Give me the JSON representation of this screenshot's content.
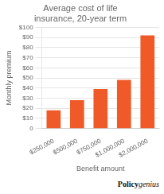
{
  "chart_data": {
    "type": "bar",
    "title": "Average cost of life\ninsurance, 20-year term",
    "categories": [
      "$250,000",
      "$500,000",
      "$750,000",
      "$1,000,000",
      "$2,000,000"
    ],
    "values": [
      18,
      28,
      39,
      48,
      92
    ],
    "color": "#F05A28",
    "xlabel": "Benefit amount",
    "ylabel": "Monthly premium",
    "ylim": [
      0,
      100
    ],
    "yticks": [
      0,
      {
        "value": 10,
        "label": "$10"
      },
      {
        "value": 20,
        "label": "$20"
      },
      {
        "value": 30,
        "label": "$30"
      },
      {
        "value": 40,
        "label": "$40"
      },
      {
        "value": 50,
        "label": "$50"
      },
      {
        "value": 60,
        "label": "$60"
      },
      {
        "value": 70,
        "label": "$70"
      },
      {
        "value": 80,
        "label": "$80"
      },
      {
        "value": 90,
        "label": "$90"
      },
      {
        "value": 100,
        "label": "$100"
      }
    ],
    "grid": true,
    "annotations": [
      "Policy",
      "genius"
    ]
  }
}
